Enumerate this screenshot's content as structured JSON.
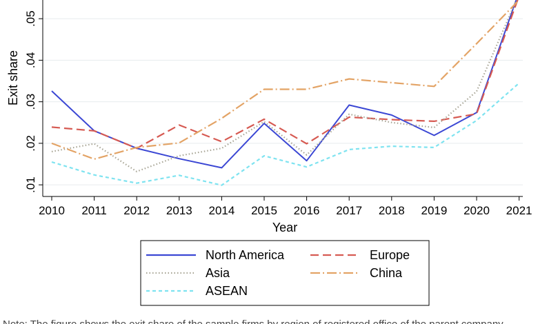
{
  "chart_data": {
    "type": "line",
    "xlabel": "Year",
    "ylabel": "Exit share",
    "categories": [
      "2010",
      "2011",
      "2012",
      "2013",
      "2014",
      "2015",
      "2016",
      "2017",
      "2018",
      "2019",
      "2020",
      "2021"
    ],
    "y_ticks": [
      ".01",
      ".02",
      ".03",
      ".04",
      ".05"
    ],
    "ylim": [
      0.0072,
      0.0545
    ],
    "grid": true,
    "legend_position": "bottom",
    "series": [
      {
        "name": "North America",
        "color": "#3b47d4",
        "dash": "solid",
        "values": [
          0.0326,
          0.023,
          0.0188,
          0.0163,
          0.0141,
          0.0248,
          0.0158,
          0.0292,
          0.0268,
          0.0219,
          0.0274,
          0.0565
        ]
      },
      {
        "name": "Europe",
        "color": "#d65a52",
        "dash": "dash",
        "values": [
          0.0239,
          0.023,
          0.0188,
          0.0244,
          0.0204,
          0.0258,
          0.0199,
          0.0263,
          0.0257,
          0.0253,
          0.0271,
          0.0555
        ]
      },
      {
        "name": "Asia",
        "color": "#a7a494",
        "dash": "dot",
        "values": [
          0.018,
          0.0199,
          0.0132,
          0.017,
          0.0188,
          0.0252,
          0.0172,
          0.027,
          0.025,
          0.0238,
          0.0325,
          0.056
        ]
      },
      {
        "name": "China",
        "color": "#e3a365",
        "dash": "longdashdot",
        "values": [
          0.02,
          0.0162,
          0.019,
          0.0201,
          0.026,
          0.033,
          0.033,
          0.0355,
          0.0346,
          0.0337,
          0.044,
          0.0545
        ]
      },
      {
        "name": "ASEAN",
        "color": "#7ee3f0",
        "dash": "shortdash",
        "values": [
          0.0155,
          0.0124,
          0.0104,
          0.0123,
          0.0099,
          0.017,
          0.0143,
          0.0185,
          0.0193,
          0.019,
          0.0255,
          0.0345
        ]
      }
    ]
  },
  "caption_fragment": "Note: The figure shows the exit share of the sample firms by region of registered office of the parent company"
}
